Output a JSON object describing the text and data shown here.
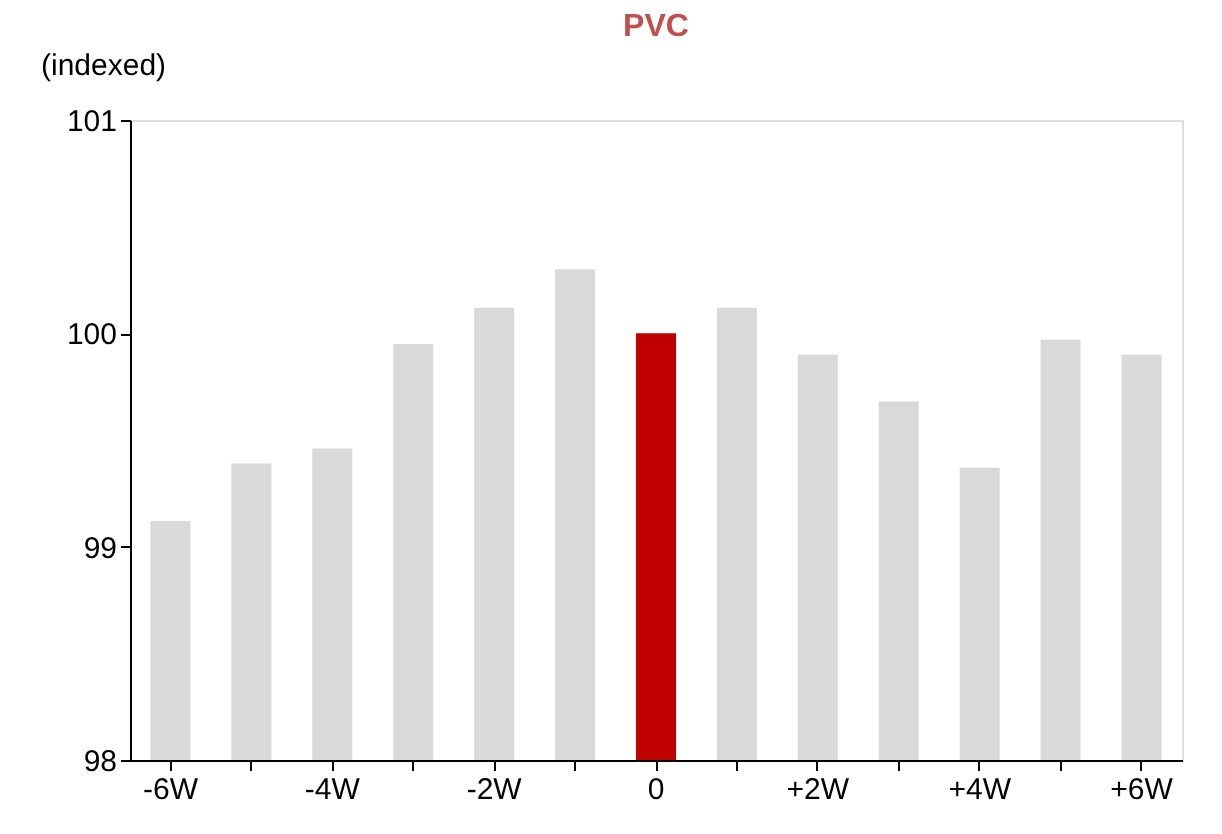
{
  "chart_data": {
    "type": "bar",
    "title": "PVC",
    "ylabel": "(indexed)",
    "categories": [
      "-6W",
      null,
      "-4W",
      null,
      "-2W",
      null,
      "0",
      null,
      "+2W",
      null,
      "+4W",
      null,
      "+6W"
    ],
    "values": [
      99.12,
      99.39,
      99.46,
      99.95,
      100.12,
      100.3,
      100.0,
      100.12,
      99.9,
      99.68,
      99.37,
      99.97,
      99.9
    ],
    "colors": [
      "#d9d9d9",
      "#d9d9d9",
      "#d9d9d9",
      "#d9d9d9",
      "#d9d9d9",
      "#d9d9d9",
      "#c00000",
      "#d9d9d9",
      "#d9d9d9",
      "#d9d9d9",
      "#d9d9d9",
      "#d9d9d9",
      "#d9d9d9"
    ],
    "ylim": [
      98,
      101
    ],
    "yticks": [
      98,
      99,
      100,
      101
    ],
    "grid": false,
    "legend": false
  }
}
